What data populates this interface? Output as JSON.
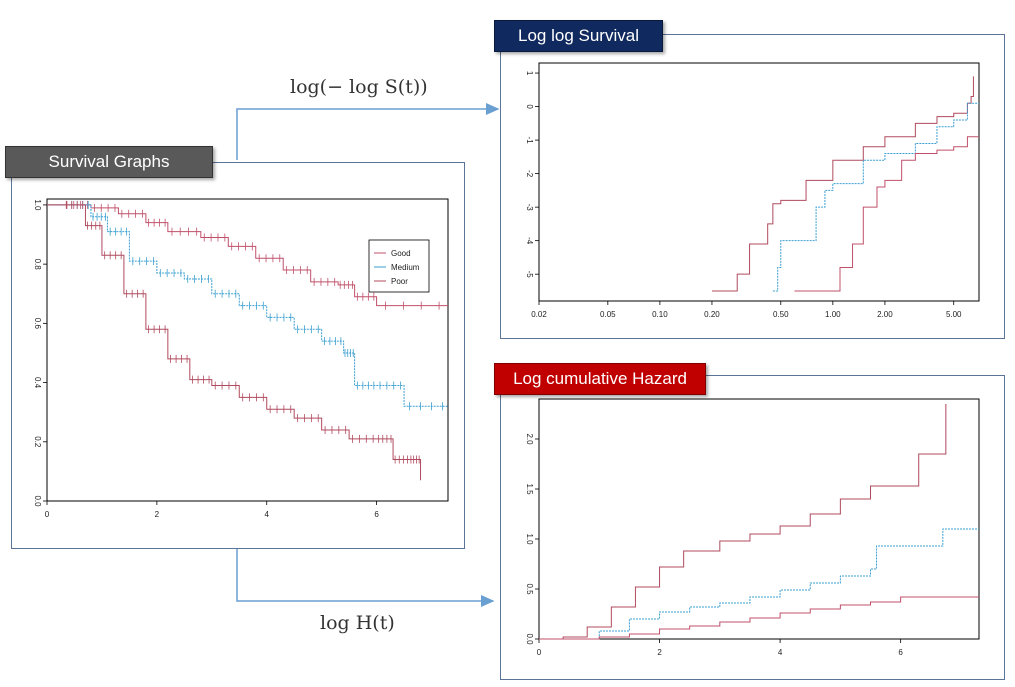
{
  "labels": {
    "survival_title": "Survival Graphs",
    "loglog_title": "Log log Survival",
    "cumhaz_title": "Log cumulative Hazard",
    "formula_top": "log(− log S(t))",
    "formula_bottom": "log H(t)"
  },
  "colors": {
    "tag_survival": "#595959",
    "tag_loglog": "#10295e",
    "tag_cumhaz": "#c00000",
    "panel_border": "#5a7396",
    "arrow": "#6a9fd2",
    "good": "#c0506a",
    "medium": "#3a9fd0",
    "poor": "#b04a5e"
  },
  "chart_data": [
    {
      "type": "line",
      "title": "Survival Graphs",
      "xlim": [
        0,
        7.3
      ],
      "ylim": [
        0,
        1.02
      ],
      "x_ticks": [
        "0",
        "2",
        "4",
        "6"
      ],
      "y_ticks": [
        "0.0",
        "0.2",
        "0.4",
        "0.6",
        "0.8",
        "1.0"
      ],
      "legend": [
        "Good",
        "Medium",
        "Poor"
      ],
      "legend_position": "right",
      "series": [
        {
          "name": "Good",
          "color": "good",
          "x": [
            0,
            0.3,
            0.8,
            1.3,
            1.8,
            2.2,
            2.8,
            3.3,
            3.8,
            4.3,
            4.8,
            5.3,
            5.6,
            6.0,
            7.3
          ],
          "y": [
            1.0,
            1.0,
            0.99,
            0.97,
            0.94,
            0.91,
            0.89,
            0.86,
            0.82,
            0.78,
            0.74,
            0.73,
            0.69,
            0.66,
            0.66
          ]
        },
        {
          "name": "Medium",
          "color": "medium",
          "x": [
            0,
            0.4,
            0.8,
            1.1,
            1.5,
            2.0,
            2.5,
            3.0,
            3.5,
            4.0,
            4.5,
            5.0,
            5.4,
            5.6,
            6.0,
            6.5,
            7.3
          ],
          "y": [
            1.0,
            1.0,
            0.96,
            0.91,
            0.81,
            0.77,
            0.75,
            0.7,
            0.66,
            0.62,
            0.58,
            0.54,
            0.5,
            0.39,
            0.39,
            0.32,
            0.32
          ]
        },
        {
          "name": "Poor",
          "color": "poor",
          "x": [
            0,
            0.3,
            0.7,
            1.0,
            1.4,
            1.8,
            2.2,
            2.6,
            3.0,
            3.5,
            4.0,
            4.5,
            5.0,
            5.5,
            6.0,
            6.3,
            6.6,
            6.8
          ],
          "y": [
            1.0,
            1.0,
            0.93,
            0.83,
            0.7,
            0.58,
            0.48,
            0.41,
            0.39,
            0.35,
            0.31,
            0.28,
            0.24,
            0.21,
            0.21,
            0.14,
            0.14,
            0.07
          ]
        }
      ]
    },
    {
      "type": "line",
      "title": "Log log Survival",
      "x_scale": "log",
      "xlim": [
        0.02,
        7.0
      ],
      "ylim": [
        -5.8,
        1.3
      ],
      "x_ticks": [
        "0.02",
        "0.05",
        "0.10",
        "0.20",
        "0.50",
        "1.00",
        "2.00",
        "5.00"
      ],
      "y_ticks": [
        "1",
        "0",
        "-1",
        "-2",
        "-3",
        "-4",
        "-5"
      ],
      "series": [
        {
          "color": "poor",
          "x": [
            0.2,
            0.28,
            0.33,
            0.42,
            0.45,
            0.5,
            0.7,
            1.0,
            1.5,
            2.0,
            3.0,
            4.0,
            5.0,
            6.0,
            6.3,
            6.5
          ],
          "y": [
            -5.5,
            -5.0,
            -4.1,
            -3.5,
            -2.9,
            -2.8,
            -2.2,
            -1.6,
            -1.2,
            -0.9,
            -0.5,
            -0.3,
            -0.2,
            0.1,
            0.3,
            0.9
          ]
        },
        {
          "color": "medium",
          "x": [
            0.45,
            0.48,
            0.5,
            0.6,
            0.8,
            0.9,
            1.0,
            1.5,
            2.0,
            3.0,
            4.0,
            5.0,
            6.0,
            7.0
          ],
          "y": [
            -5.5,
            -4.8,
            -4.0,
            -4.0,
            -3.0,
            -2.5,
            -2.3,
            -1.6,
            -1.4,
            -1.1,
            -0.6,
            -0.4,
            0.1,
            0.1
          ]
        },
        {
          "color": "good",
          "x": [
            0.6,
            0.9,
            1.1,
            1.3,
            1.5,
            1.8,
            2.0,
            2.5,
            3.0,
            4.0,
            5.0,
            6.0,
            7.0
          ],
          "y": [
            -5.5,
            -5.5,
            -4.8,
            -4.1,
            -3.0,
            -2.4,
            -2.2,
            -1.6,
            -1.4,
            -1.3,
            -1.2,
            -0.9,
            -0.9
          ]
        }
      ]
    },
    {
      "type": "line",
      "title": "Log cumulative Hazard",
      "xlim": [
        0,
        7.3
      ],
      "ylim": [
        0,
        2.4
      ],
      "x_ticks": [
        "0",
        "2",
        "4",
        "6"
      ],
      "y_ticks": [
        "0.0",
        "0.5",
        "1.0",
        "1.5",
        "2.0"
      ],
      "series": [
        {
          "color": "poor",
          "x": [
            0,
            0.4,
            0.8,
            1.2,
            1.6,
            2.0,
            2.4,
            3.0,
            3.5,
            4.0,
            4.5,
            5.0,
            5.5,
            6.0,
            6.3,
            6.6,
            6.7,
            6.75
          ],
          "y": [
            0,
            0.02,
            0.12,
            0.32,
            0.52,
            0.72,
            0.88,
            0.98,
            1.05,
            1.13,
            1.25,
            1.4,
            1.53,
            1.53,
            1.85,
            1.85,
            1.85,
            2.35
          ]
        },
        {
          "color": "medium",
          "x": [
            0,
            0.5,
            1.0,
            1.5,
            2.0,
            2.5,
            3.0,
            3.5,
            4.0,
            4.5,
            5.0,
            5.5,
            5.6,
            6.0,
            6.5,
            6.7,
            7.3
          ],
          "y": [
            0,
            0.0,
            0.08,
            0.2,
            0.27,
            0.32,
            0.36,
            0.42,
            0.49,
            0.56,
            0.63,
            0.7,
            0.93,
            0.93,
            0.93,
            1.1,
            1.1
          ]
        },
        {
          "color": "good",
          "x": [
            0,
            1.0,
            1.5,
            2.0,
            2.5,
            3.0,
            3.5,
            4.0,
            4.5,
            5.0,
            5.5,
            6.0,
            7.3
          ],
          "y": [
            0,
            0.02,
            0.05,
            0.1,
            0.13,
            0.17,
            0.21,
            0.26,
            0.3,
            0.34,
            0.37,
            0.42,
            0.42
          ]
        }
      ]
    }
  ]
}
